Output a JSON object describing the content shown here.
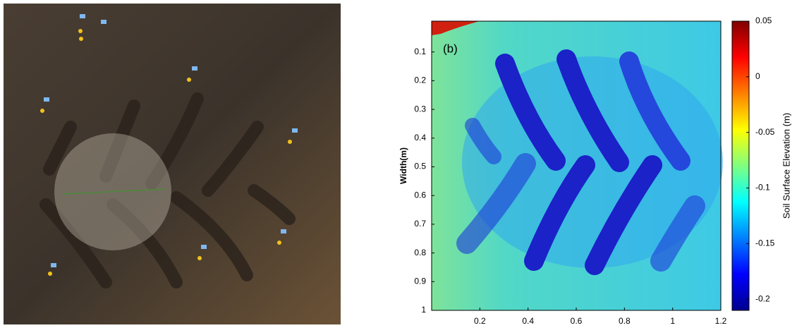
{
  "chart_data": {
    "type": "heatmap",
    "panel_label": "(b)",
    "ylabel": "Width(m)",
    "colorbar_label": "Soil Surface Elevation (m)",
    "colormap": "jet",
    "xlim": [
      0,
      1.2
    ],
    "xticks": [
      0.2,
      0.4,
      0.6,
      0.8,
      1,
      1.2
    ],
    "ylim": [
      0,
      1
    ],
    "yticks": [
      0.1,
      0.2,
      0.3,
      0.4,
      0.5,
      0.6,
      0.7,
      0.8,
      0.9,
      1
    ],
    "clim": [
      -0.21,
      0.05
    ],
    "cticks": [
      0.05,
      0,
      -0.05,
      -0.1,
      -0.15,
      -0.2
    ]
  }
}
